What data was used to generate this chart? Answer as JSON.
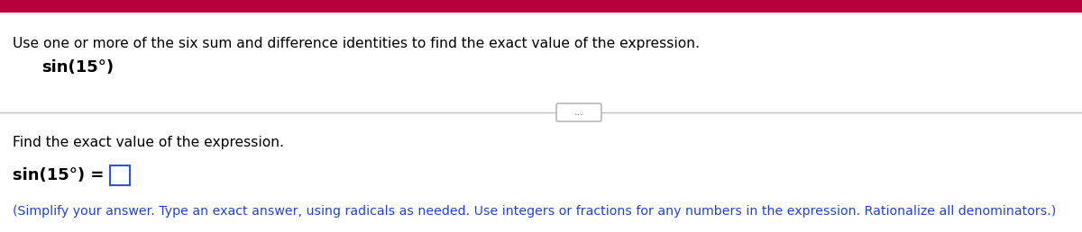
{
  "bg_color": "#ffffff",
  "header_color": "#b5003a",
  "line1_text": "Use one or more of the six sum and difference identities to find the exact value of the expression.",
  "line1_color": "#000000",
  "line1_fontsize": 11.2,
  "sin_text": "sin(15°)",
  "sin_fontsize": 13,
  "divider_color": "#c0c0c8",
  "dots_text": "...",
  "dots_color": "#555555",
  "dots_fontsize": 8,
  "dots_box_color": "#aaaaaa",
  "find_text": "Find the exact value of the expression.",
  "find_fontsize": 11.2,
  "find_color": "#000000",
  "eq_text": "sin(15°) =",
  "eq_fontsize": 13,
  "box_color": "#3355cc",
  "simplify_text": "(Simplify your answer. Type an exact answer, using radicals as needed. Use integers or fractions for any numbers in the expression. Rationalize all denominators.)",
  "simplify_fontsize": 10.2,
  "simplify_color": "#2244cc"
}
